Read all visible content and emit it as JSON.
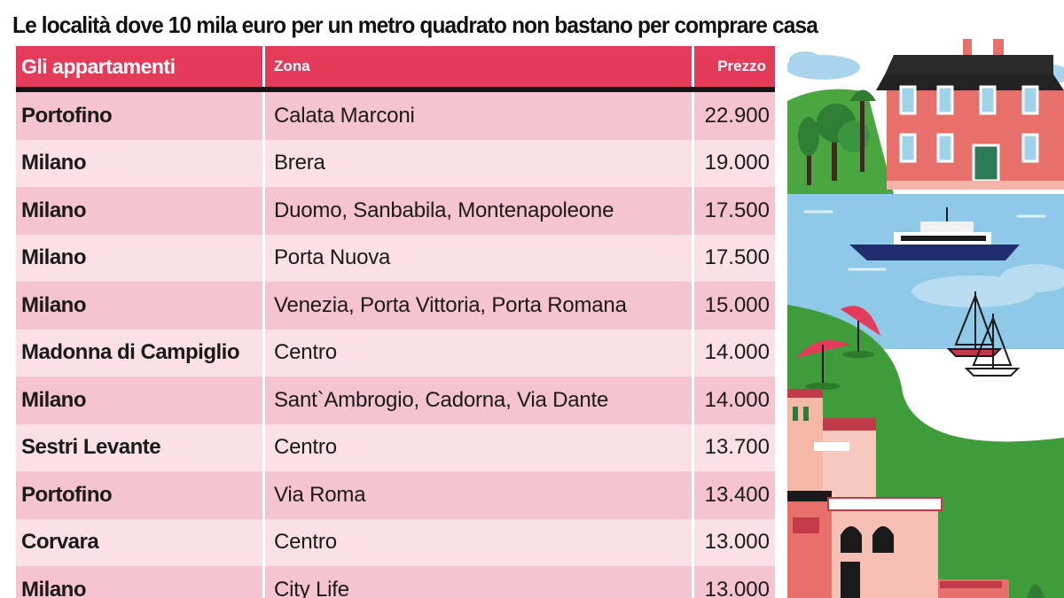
{
  "title": "Le località dove 10 mila euro per un metro quadrato non bastano per comprare casa",
  "header": {
    "col1": "Gli appartamenti",
    "col2": "Zona",
    "col3": "Prezzo"
  },
  "chart_data": {
    "type": "table",
    "title": "Le località dove 10 mila euro per un metro quadrato non bastano per comprare casa",
    "columns": [
      "Gli appartamenti",
      "Zona",
      "Prezzo"
    ],
    "rows": [
      {
        "city": "Portofino",
        "zone": "Calata Marconi",
        "price": "22.900"
      },
      {
        "city": "Milano",
        "zone": "Brera",
        "price": "19.000"
      },
      {
        "city": "Milano",
        "zone": "Duomo, Sanbabila, Montenapoleone",
        "price": "17.500"
      },
      {
        "city": "Milano",
        "zone": "Porta Nuova",
        "price": "17.500"
      },
      {
        "city": "Milano",
        "zone": "Venezia, Porta Vittoria, Porta Romana",
        "price": "15.000"
      },
      {
        "city": "Madonna di Campiglio",
        "zone": "Centro",
        "price": "14.000"
      },
      {
        "city": "Milano",
        "zone": "Sant`Ambrogio, Cadorna, Via Dante",
        "price": "14.000"
      },
      {
        "city": "Sestri Levante",
        "zone": "Centro",
        "price": "13.700"
      },
      {
        "city": "Portofino",
        "zone": "Via Roma",
        "price": "13.400"
      },
      {
        "city": "Corvara",
        "zone": "Centro",
        "price": "13.000"
      },
      {
        "city": "Milano",
        "zone": "City Life",
        "price": "13.000"
      }
    ]
  },
  "colors": {
    "header": "#e33b59",
    "row_dark": "#f5c4d0",
    "row_light": "#fbe1e7",
    "rule": "#141414",
    "water": "#8fc9e8",
    "grass": "#3f9c3a",
    "villa": "#e8706a"
  },
  "illustration": {
    "name": "seaside-villa-illustration",
    "elements": [
      "villa",
      "trees",
      "yacht",
      "sailboats",
      "beach-umbrellas",
      "colorful-houses"
    ]
  }
}
